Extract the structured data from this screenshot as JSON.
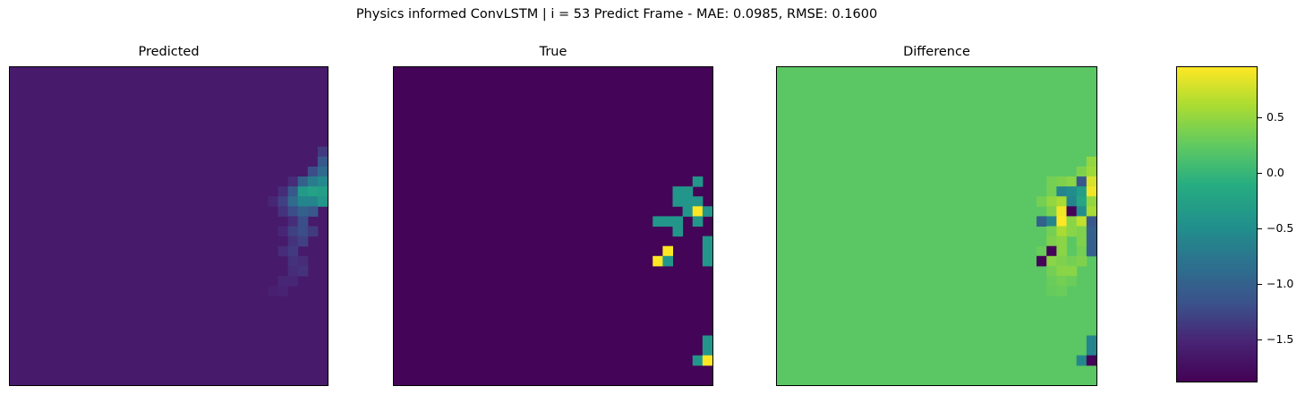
{
  "chart_data": [
    {
      "type": "heatmap",
      "suptitle": "Physics informed ConvLSTM | i = 53 Predict Frame - MAE: 0.0985, RMSE: 0.1600",
      "colormap": "viridis",
      "colorbar": {
        "vmin": -1.88,
        "vmax": 0.95,
        "ticks": [
          0.5,
          0.0,
          -0.5,
          -1.0,
          -1.5
        ],
        "tick_labels": [
          "0.5",
          "0.0",
          "−0.5",
          "−1.0",
          "−1.5"
        ]
      },
      "grid_size": 32,
      "panels": [
        {
          "title": "Predicted",
          "background": -1.62,
          "cells": [
            {
              "r": 8,
              "c": 31,
              "v": -1.35
            },
            {
              "r": 9,
              "c": 31,
              "v": -1.1
            },
            {
              "r": 10,
              "c": 30,
              "v": -1.2
            },
            {
              "r": 10,
              "c": 31,
              "v": -0.9
            },
            {
              "r": 11,
              "c": 28,
              "v": -1.45
            },
            {
              "r": 11,
              "c": 29,
              "v": -1.0
            },
            {
              "r": 11,
              "c": 30,
              "v": -0.7
            },
            {
              "r": 11,
              "c": 31,
              "v": -0.55
            },
            {
              "r": 12,
              "c": 27,
              "v": -1.45
            },
            {
              "r": 12,
              "c": 28,
              "v": -1.1
            },
            {
              "r": 12,
              "c": 29,
              "v": -0.35
            },
            {
              "r": 12,
              "c": 30,
              "v": -0.25
            },
            {
              "r": 12,
              "c": 31,
              "v": -0.3
            },
            {
              "r": 13,
              "c": 26,
              "v": -1.5
            },
            {
              "r": 13,
              "c": 27,
              "v": -1.3
            },
            {
              "r": 13,
              "c": 28,
              "v": -0.9
            },
            {
              "r": 13,
              "c": 29,
              "v": -0.6
            },
            {
              "r": 13,
              "c": 30,
              "v": -0.6
            },
            {
              "r": 13,
              "c": 31,
              "v": -0.4
            },
            {
              "r": 14,
              "c": 27,
              "v": -1.4
            },
            {
              "r": 14,
              "c": 28,
              "v": -1.2
            },
            {
              "r": 14,
              "c": 29,
              "v": -1.0
            },
            {
              "r": 14,
              "c": 30,
              "v": -1.1
            },
            {
              "r": 15,
              "c": 28,
              "v": -1.45
            },
            {
              "r": 15,
              "c": 29,
              "v": -1.2
            },
            {
              "r": 16,
              "c": 27,
              "v": -1.5
            },
            {
              "r": 16,
              "c": 28,
              "v": -1.3
            },
            {
              "r": 16,
              "c": 29,
              "v": -1.2
            },
            {
              "r": 16,
              "c": 30,
              "v": -1.35
            },
            {
              "r": 17,
              "c": 28,
              "v": -1.4
            },
            {
              "r": 17,
              "c": 29,
              "v": -1.3
            },
            {
              "r": 18,
              "c": 27,
              "v": -1.45
            },
            {
              "r": 18,
              "c": 28,
              "v": -1.35
            },
            {
              "r": 19,
              "c": 28,
              "v": -1.4
            },
            {
              "r": 19,
              "c": 29,
              "v": -1.45
            },
            {
              "r": 20,
              "c": 28,
              "v": -1.45
            },
            {
              "r": 20,
              "c": 29,
              "v": -1.4
            },
            {
              "r": 21,
              "c": 27,
              "v": -1.5
            },
            {
              "r": 21,
              "c": 28,
              "v": -1.5
            },
            {
              "r": 22,
              "c": 26,
              "v": -1.55
            },
            {
              "r": 22,
              "c": 27,
              "v": -1.52
            }
          ]
        },
        {
          "title": "True",
          "background": -1.85,
          "cells": [
            {
              "r": 11,
              "c": 30,
              "v": -0.4
            },
            {
              "r": 12,
              "c": 28,
              "v": -0.4
            },
            {
              "r": 12,
              "c": 29,
              "v": -0.4
            },
            {
              "r": 13,
              "c": 28,
              "v": -0.4
            },
            {
              "r": 13,
              "c": 29,
              "v": -0.4
            },
            {
              "r": 13,
              "c": 30,
              "v": -0.4
            },
            {
              "r": 14,
              "c": 29,
              "v": -0.4
            },
            {
              "r": 14,
              "c": 30,
              "v": 0.95
            },
            {
              "r": 14,
              "c": 31,
              "v": -0.4
            },
            {
              "r": 15,
              "c": 26,
              "v": -0.4
            },
            {
              "r": 15,
              "c": 27,
              "v": -0.4
            },
            {
              "r": 15,
              "c": 28,
              "v": -0.4
            },
            {
              "r": 15,
              "c": 30,
              "v": -0.4
            },
            {
              "r": 16,
              "c": 28,
              "v": -0.4
            },
            {
              "r": 17,
              "c": 31,
              "v": -0.4
            },
            {
              "r": 18,
              "c": 31,
              "v": -0.4
            },
            {
              "r": 19,
              "c": 31,
              "v": -0.4
            },
            {
              "r": 18,
              "c": 27,
              "v": 0.95
            },
            {
              "r": 19,
              "c": 26,
              "v": 0.95
            },
            {
              "r": 19,
              "c": 27,
              "v": -0.4
            },
            {
              "r": 27,
              "c": 31,
              "v": -0.4
            },
            {
              "r": 28,
              "c": 31,
              "v": -0.4
            },
            {
              "r": 29,
              "c": 30,
              "v": -0.4
            },
            {
              "r": 29,
              "c": 31,
              "v": 0.95
            }
          ]
        },
        {
          "title": "Difference",
          "background": 0.22,
          "cells": [
            {
              "r": 9,
              "c": 31,
              "v": 0.5
            },
            {
              "r": 10,
              "c": 30,
              "v": 0.4
            },
            {
              "r": 10,
              "c": 31,
              "v": 0.55
            },
            {
              "r": 11,
              "c": 27,
              "v": 0.35
            },
            {
              "r": 11,
              "c": 28,
              "v": 0.4
            },
            {
              "r": 11,
              "c": 29,
              "v": 0.45
            },
            {
              "r": 11,
              "c": 30,
              "v": -1.1
            },
            {
              "r": 11,
              "c": 31,
              "v": 0.8
            },
            {
              "r": 12,
              "c": 27,
              "v": 0.35
            },
            {
              "r": 12,
              "c": 28,
              "v": -0.6
            },
            {
              "r": 12,
              "c": 29,
              "v": -0.5
            },
            {
              "r": 12,
              "c": 30,
              "v": -0.3
            },
            {
              "r": 12,
              "c": 31,
              "v": 0.9
            },
            {
              "r": 13,
              "c": 26,
              "v": 0.35
            },
            {
              "r": 13,
              "c": 27,
              "v": 0.5
            },
            {
              "r": 13,
              "c": 28,
              "v": 0.6
            },
            {
              "r": 13,
              "c": 29,
              "v": -0.6
            },
            {
              "r": 13,
              "c": 30,
              "v": -0.2
            },
            {
              "r": 13,
              "c": 31,
              "v": 0.5
            },
            {
              "r": 14,
              "c": 27,
              "v": 0.4
            },
            {
              "r": 14,
              "c": 28,
              "v": 0.9
            },
            {
              "r": 14,
              "c": 29,
              "v": -1.85
            },
            {
              "r": 14,
              "c": 30,
              "v": -0.5
            },
            {
              "r": 14,
              "c": 31,
              "v": 0.6
            },
            {
              "r": 15,
              "c": 26,
              "v": -1.0
            },
            {
              "r": 15,
              "c": 27,
              "v": -0.6
            },
            {
              "r": 15,
              "c": 28,
              "v": 0.95
            },
            {
              "r": 15,
              "c": 29,
              "v": 0.45
            },
            {
              "r": 15,
              "c": 30,
              "v": 0.7
            },
            {
              "r": 15,
              "c": 31,
              "v": -1.1
            },
            {
              "r": 16,
              "c": 27,
              "v": 0.35
            },
            {
              "r": 16,
              "c": 28,
              "v": 0.6
            },
            {
              "r": 16,
              "c": 29,
              "v": 0.45
            },
            {
              "r": 16,
              "c": 30,
              "v": 0.4
            },
            {
              "r": 16,
              "c": 31,
              "v": -1.0
            },
            {
              "r": 17,
              "c": 27,
              "v": 0.4
            },
            {
              "r": 17,
              "c": 28,
              "v": 0.45
            },
            {
              "r": 17,
              "c": 30,
              "v": 0.4
            },
            {
              "r": 17,
              "c": 31,
              "v": -1.0
            },
            {
              "r": 18,
              "c": 26,
              "v": 0.3
            },
            {
              "r": 18,
              "c": 27,
              "v": -1.85
            },
            {
              "r": 18,
              "c": 28,
              "v": 0.45
            },
            {
              "r": 18,
              "c": 30,
              "v": 0.35
            },
            {
              "r": 18,
              "c": 31,
              "v": -1.0
            },
            {
              "r": 19,
              "c": 26,
              "v": -1.85
            },
            {
              "r": 19,
              "c": 27,
              "v": 0.45
            },
            {
              "r": 19,
              "c": 28,
              "v": 0.4
            },
            {
              "r": 19,
              "c": 29,
              "v": 0.35
            },
            {
              "r": 19,
              "c": 30,
              "v": 0.4
            },
            {
              "r": 20,
              "c": 27,
              "v": 0.35
            },
            {
              "r": 20,
              "c": 28,
              "v": 0.45
            },
            {
              "r": 20,
              "c": 29,
              "v": 0.45
            },
            {
              "r": 21,
              "c": 27,
              "v": 0.3
            },
            {
              "r": 21,
              "c": 28,
              "v": 0.35
            },
            {
              "r": 21,
              "c": 29,
              "v": 0.3
            },
            {
              "r": 22,
              "c": 27,
              "v": 0.28
            },
            {
              "r": 22,
              "c": 28,
              "v": 0.3
            },
            {
              "r": 27,
              "c": 31,
              "v": -0.6
            },
            {
              "r": 28,
              "c": 31,
              "v": -0.6
            },
            {
              "r": 29,
              "c": 30,
              "v": -0.6
            },
            {
              "r": 29,
              "c": 31,
              "v": -1.85
            }
          ]
        }
      ]
    }
  ]
}
